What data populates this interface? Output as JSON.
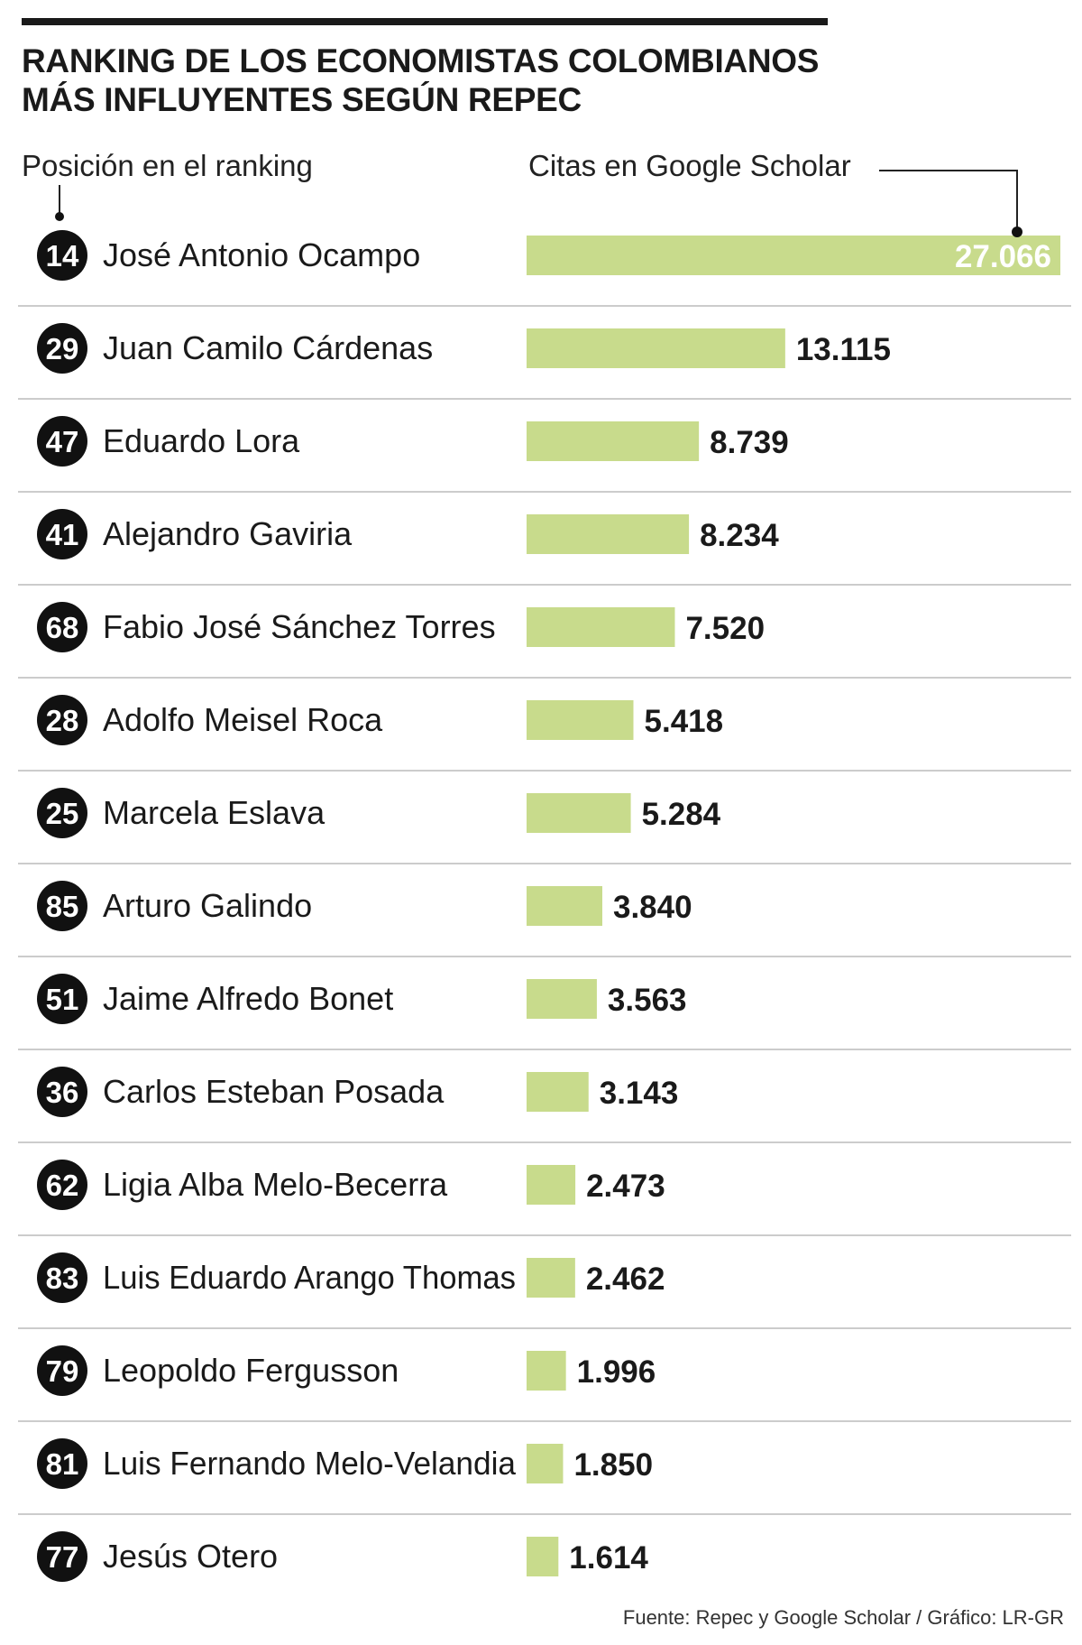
{
  "title": [
    "RANKING DE LOS ECONOMISTAS COLOMBIANOS",
    "MÁS INFLUYENTES SEGÚN REPEC"
  ],
  "column_headers": {
    "position": "Posición en el ranking",
    "citations": "Citas en Google Scholar"
  },
  "source": "Fuente: Repec y Google Scholar / Gráfico: LR-GR",
  "colors": {
    "bar": "#c8db8c",
    "badge": "#111111",
    "separator": "#cccccc",
    "text": "#1a1a1a"
  },
  "chart_data": {
    "type": "bar",
    "orientation": "horizontal",
    "ylabel": "Citas en Google Scholar",
    "rows": [
      {
        "rank": "14",
        "name": "José Antonio Ocampo",
        "value": 27066,
        "label": "27.066"
      },
      {
        "rank": "29",
        "name": "Juan Camilo Cárdenas",
        "value": 13115,
        "label": "13.115"
      },
      {
        "rank": "47",
        "name": "Eduardo Lora",
        "value": 8739,
        "label": "8.739"
      },
      {
        "rank": "41",
        "name": "Alejandro Gaviria",
        "value": 8234,
        "label": "8.234"
      },
      {
        "rank": "68",
        "name": "Fabio José Sánchez Torres",
        "value": 7520,
        "label": "7.520"
      },
      {
        "rank": "28",
        "name": "Adolfo Meisel Roca",
        "value": 5418,
        "label": "5.418"
      },
      {
        "rank": "25",
        "name": "Marcela Eslava",
        "value": 5284,
        "label": "5.284"
      },
      {
        "rank": "85",
        "name": "Arturo Galindo",
        "value": 3840,
        "label": "3.840"
      },
      {
        "rank": "51",
        "name": "Jaime Alfredo Bonet",
        "value": 3563,
        "label": "3.563"
      },
      {
        "rank": "36",
        "name": "Carlos Esteban Posada",
        "value": 3143,
        "label": "3.143"
      },
      {
        "rank": "62",
        "name": "Ligia Alba Melo-Becerra",
        "value": 2473,
        "label": "2.473"
      },
      {
        "rank": "83",
        "name": "Luis Eduardo Arango Thomas",
        "value": 2462,
        "label": "2.462"
      },
      {
        "rank": "79",
        "name": "Leopoldo Fergusson",
        "value": 1996,
        "label": "1.996"
      },
      {
        "rank": "81",
        "name": "Luis Fernando Melo-Velandia",
        "value": 1850,
        "label": "1.850"
      },
      {
        "rank": "77",
        "name": "Jesús Otero",
        "value": 1614,
        "label": "1.614"
      }
    ]
  }
}
